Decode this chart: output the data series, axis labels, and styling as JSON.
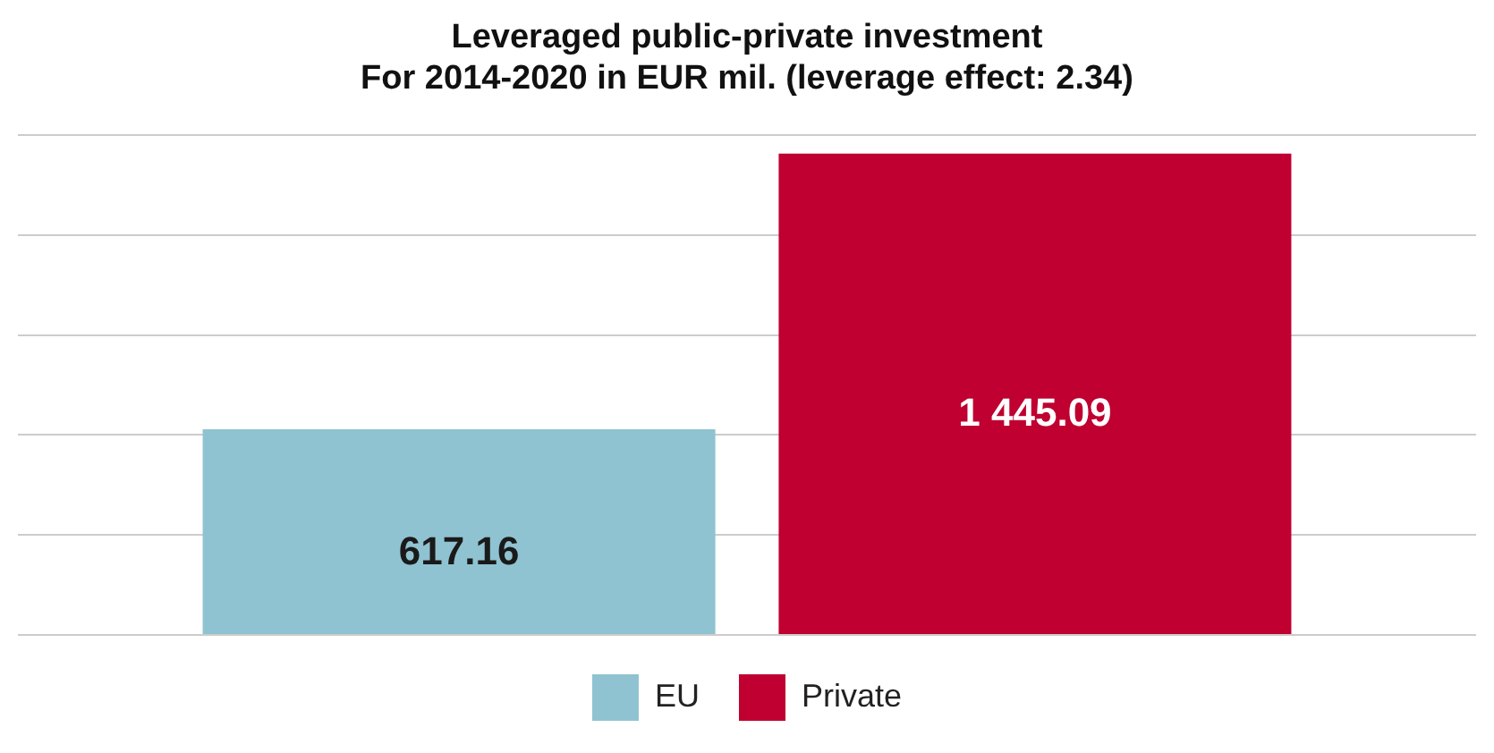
{
  "chart_data": {
    "type": "bar",
    "title": "Leveraged public-private investment\nFor 2014-2020 in EUR mil. (leverage effect: 2.34)",
    "categories": [
      null
    ],
    "series": [
      {
        "name": "EU",
        "color": "#8fc3d1",
        "values": [
          617.16
        ],
        "value_labels": [
          "617.16"
        ]
      },
      {
        "name": "Private",
        "color": "#bf0030",
        "values": [
          1445.09
        ],
        "value_labels": [
          "1 445.09"
        ]
      }
    ],
    "ylim": [
      0,
      1500
    ],
    "yticks": [
      0,
      300,
      600,
      900,
      1200,
      1500
    ],
    "grid": "y",
    "legend": "bottom",
    "tick_labels": false
  }
}
